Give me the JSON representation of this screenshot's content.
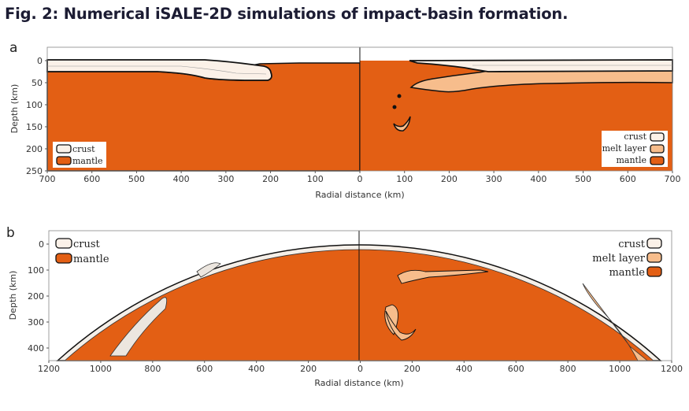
{
  "figure_title": "Fig. 2: Numerical iSALE-2D simulations of impact-basin formation.",
  "colors": {
    "mantle": "#e35f14",
    "melt": "#f7bd8c",
    "crust": "#fbf1e8",
    "outline": "#111111"
  },
  "panel_a": {
    "label": "a",
    "xlabel": "Radial distance (km)",
    "ylabel": "Depth (km)",
    "xticks": [
      "700",
      "600",
      "500",
      "400",
      "300",
      "200",
      "100",
      "0",
      "100",
      "200",
      "300",
      "400",
      "500",
      "600",
      "700"
    ],
    "yticks": [
      "0",
      "50",
      "100",
      "150",
      "200",
      "250"
    ],
    "legend_left": [
      "crust",
      "mantle"
    ],
    "legend_right": [
      "crust",
      "melt layer",
      "mantle"
    ]
  },
  "panel_b": {
    "label": "b",
    "xlabel": "Radial distance (km)",
    "ylabel": "Depth (km)",
    "xticks": [
      "1200",
      "1000",
      "800",
      "600",
      "400",
      "200",
      "0",
      "200",
      "400",
      "600",
      "800",
      "1000",
      "1200"
    ],
    "yticks": [
      "0",
      "100",
      "200",
      "300",
      "400"
    ],
    "legend_left": [
      "crust",
      "mantle"
    ],
    "legend_right": [
      "crust",
      "melt layer",
      "mantle"
    ]
  }
}
